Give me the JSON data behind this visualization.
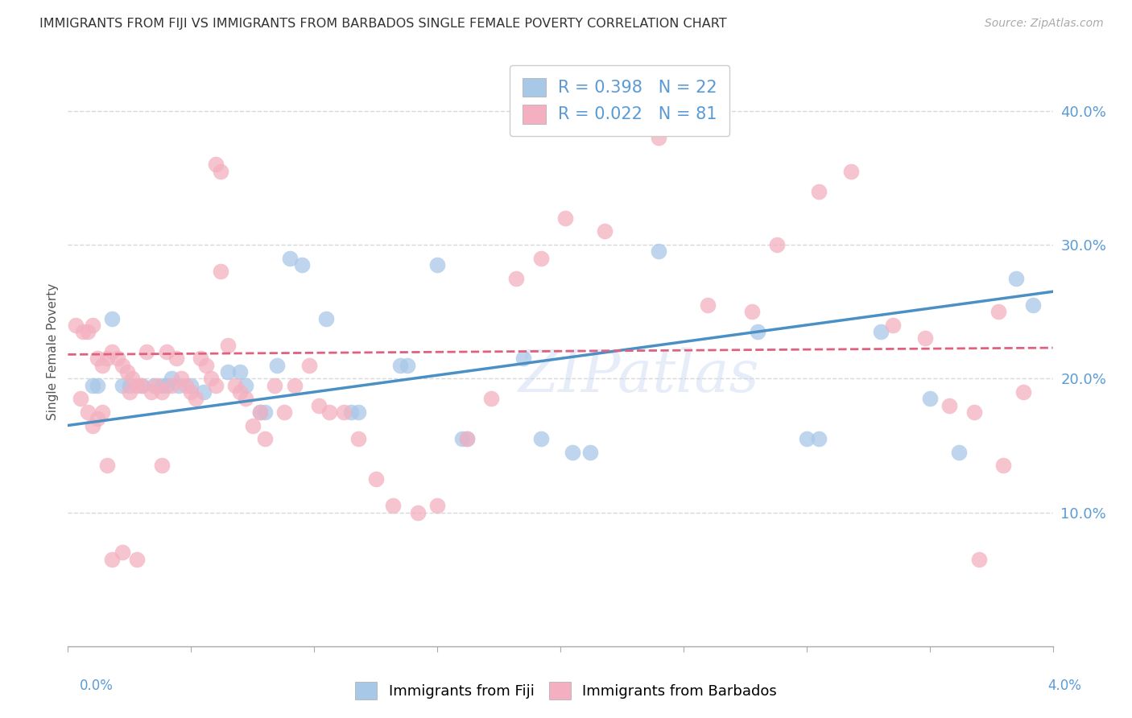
{
  "title": "IMMIGRANTS FROM FIJI VS IMMIGRANTS FROM BARBADOS SINGLE FEMALE POVERTY CORRELATION CHART",
  "source": "Source: ZipAtlas.com",
  "ylabel": "Single Female Poverty",
  "fiji_color": "#a8c8e8",
  "barbados_color": "#f4b0c0",
  "fiji_line_color": "#4a90c4",
  "barbados_line_color": "#e06080",
  "fiji_scatter": [
    [
      0.18,
      0.245
    ],
    [
      0.22,
      0.195
    ],
    [
      0.25,
      0.195
    ],
    [
      0.3,
      0.195
    ],
    [
      0.35,
      0.195
    ],
    [
      0.38,
      0.195
    ],
    [
      0.4,
      0.195
    ],
    [
      0.42,
      0.2
    ],
    [
      0.45,
      0.195
    ],
    [
      0.5,
      0.195
    ],
    [
      0.55,
      0.19
    ],
    [
      0.65,
      0.205
    ],
    [
      0.7,
      0.205
    ],
    [
      0.72,
      0.195
    ],
    [
      0.78,
      0.175
    ],
    [
      0.8,
      0.175
    ],
    [
      0.85,
      0.21
    ],
    [
      0.9,
      0.29
    ],
    [
      0.95,
      0.285
    ],
    [
      1.05,
      0.245
    ],
    [
      1.15,
      0.175
    ],
    [
      1.18,
      0.175
    ],
    [
      1.35,
      0.21
    ],
    [
      1.38,
      0.21
    ],
    [
      1.6,
      0.155
    ],
    [
      1.62,
      0.155
    ],
    [
      1.85,
      0.215
    ],
    [
      1.92,
      0.155
    ],
    [
      2.05,
      0.145
    ],
    [
      2.12,
      0.145
    ],
    [
      0.1,
      0.195
    ],
    [
      0.12,
      0.195
    ],
    [
      1.5,
      0.285
    ],
    [
      2.4,
      0.295
    ],
    [
      2.8,
      0.235
    ],
    [
      3.0,
      0.155
    ],
    [
      3.05,
      0.155
    ],
    [
      3.3,
      0.235
    ],
    [
      3.5,
      0.185
    ],
    [
      3.62,
      0.145
    ],
    [
      3.85,
      0.275
    ],
    [
      3.92,
      0.255
    ]
  ],
  "barbados_scatter": [
    [
      0.03,
      0.24
    ],
    [
      0.06,
      0.235
    ],
    [
      0.08,
      0.235
    ],
    [
      0.1,
      0.24
    ],
    [
      0.12,
      0.215
    ],
    [
      0.14,
      0.21
    ],
    [
      0.16,
      0.215
    ],
    [
      0.18,
      0.22
    ],
    [
      0.2,
      0.215
    ],
    [
      0.22,
      0.21
    ],
    [
      0.24,
      0.205
    ],
    [
      0.26,
      0.2
    ],
    [
      0.28,
      0.195
    ],
    [
      0.3,
      0.195
    ],
    [
      0.32,
      0.22
    ],
    [
      0.34,
      0.19
    ],
    [
      0.36,
      0.195
    ],
    [
      0.38,
      0.19
    ],
    [
      0.4,
      0.22
    ],
    [
      0.42,
      0.195
    ],
    [
      0.44,
      0.215
    ],
    [
      0.46,
      0.2
    ],
    [
      0.48,
      0.195
    ],
    [
      0.5,
      0.19
    ],
    [
      0.52,
      0.185
    ],
    [
      0.54,
      0.215
    ],
    [
      0.56,
      0.21
    ],
    [
      0.58,
      0.2
    ],
    [
      0.6,
      0.195
    ],
    [
      0.62,
      0.28
    ],
    [
      0.65,
      0.225
    ],
    [
      0.68,
      0.195
    ],
    [
      0.7,
      0.19
    ],
    [
      0.72,
      0.185
    ],
    [
      0.75,
      0.165
    ],
    [
      0.78,
      0.175
    ],
    [
      0.8,
      0.155
    ],
    [
      0.84,
      0.195
    ],
    [
      0.88,
      0.175
    ],
    [
      0.92,
      0.195
    ],
    [
      0.98,
      0.21
    ],
    [
      1.02,
      0.18
    ],
    [
      1.06,
      0.175
    ],
    [
      1.12,
      0.175
    ],
    [
      1.18,
      0.155
    ],
    [
      1.25,
      0.125
    ],
    [
      1.32,
      0.105
    ],
    [
      1.42,
      0.1
    ],
    [
      1.5,
      0.105
    ],
    [
      1.62,
      0.155
    ],
    [
      1.72,
      0.185
    ],
    [
      1.82,
      0.275
    ],
    [
      1.92,
      0.29
    ],
    [
      2.02,
      0.32
    ],
    [
      2.18,
      0.31
    ],
    [
      2.4,
      0.38
    ],
    [
      2.5,
      0.41
    ],
    [
      2.6,
      0.255
    ],
    [
      2.78,
      0.25
    ],
    [
      2.88,
      0.3
    ],
    [
      3.05,
      0.34
    ],
    [
      3.18,
      0.355
    ],
    [
      3.35,
      0.24
    ],
    [
      3.48,
      0.23
    ],
    [
      3.58,
      0.18
    ],
    [
      3.68,
      0.175
    ],
    [
      3.78,
      0.25
    ],
    [
      3.88,
      0.19
    ],
    [
      0.05,
      0.185
    ],
    [
      0.08,
      0.175
    ],
    [
      0.1,
      0.165
    ],
    [
      0.12,
      0.17
    ],
    [
      0.14,
      0.175
    ],
    [
      0.16,
      0.135
    ],
    [
      0.18,
      0.065
    ],
    [
      0.22,
      0.07
    ],
    [
      0.25,
      0.19
    ],
    [
      0.28,
      0.065
    ],
    [
      0.38,
      0.135
    ],
    [
      0.6,
      0.36
    ],
    [
      0.62,
      0.355
    ],
    [
      3.7,
      0.065
    ],
    [
      3.8,
      0.135
    ]
  ],
  "fiji_line": {
    "x0": 0.0,
    "x1": 4.0,
    "y0": 0.165,
    "y1": 0.265
  },
  "barbados_line": {
    "x0": 0.0,
    "x1": 4.0,
    "y0": 0.218,
    "y1": 0.223
  },
  "xlim": [
    0.0,
    4.0
  ],
  "ylim": [
    0.0,
    0.44
  ],
  "x_ticks": [
    0.0,
    0.5,
    1.0,
    1.5,
    2.0,
    2.5,
    3.0,
    3.5,
    4.0
  ],
  "y_ticks": [
    0.0,
    0.1,
    0.2,
    0.3,
    0.4
  ],
  "y_tick_labels": [
    "",
    "10.0%",
    "20.0%",
    "30.0%",
    "40.0%"
  ],
  "background_color": "#ffffff",
  "grid_color": "#d8d8d8",
  "title_color": "#333333",
  "tick_color": "#5b9bd5",
  "axis_color": "#aaaaaa",
  "watermark": "ZIPatlas"
}
